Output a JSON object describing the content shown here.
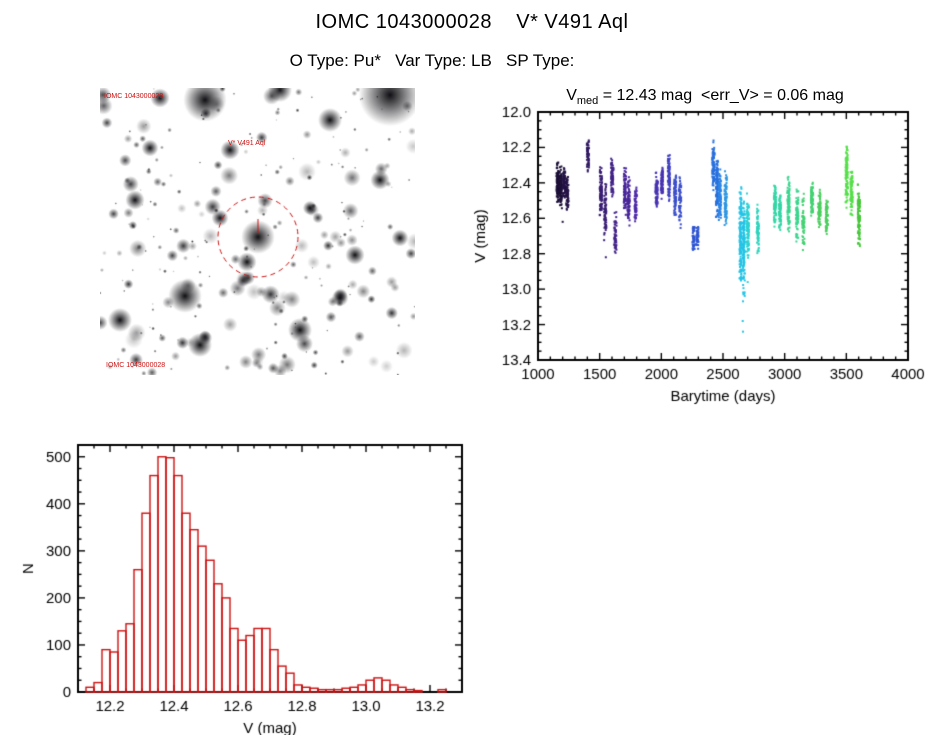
{
  "header": {
    "title": "IOMC 1043000028    V* V491 Aql",
    "subtitle": "O Type: Pu*   Var Type: LB   SP Type:"
  },
  "finding_chart": {
    "label_top_left": "IOMC 1043000028",
    "label_target": "V* V491 Aql",
    "label_bottom": "IOMC 1043000028",
    "circle_color": "#cc1111",
    "seed": 7,
    "n_stars": 270,
    "target": [
      158,
      149
    ],
    "circle_radius": 40,
    "bright_stars": [
      [
        105,
        12,
        9
      ],
      [
        290,
        7,
        13
      ],
      [
        60,
        10,
        4
      ],
      [
        130,
        62,
        4
      ],
      [
        85,
        208,
        7
      ],
      [
        100,
        257,
        5
      ],
      [
        158,
        149,
        7
      ],
      [
        147,
        174,
        4
      ],
      [
        255,
        167,
        4
      ],
      [
        200,
        242,
        5
      ],
      [
        35,
        112,
        4
      ],
      [
        280,
        92,
        4
      ],
      [
        230,
        32,
        5
      ],
      [
        20,
        232,
        5
      ],
      [
        180,
        2,
        5
      ],
      [
        300,
        150,
        3.5
      ],
      [
        50,
        60,
        3.5
      ],
      [
        240,
        210,
        3.5
      ],
      [
        120,
        130,
        3.5
      ],
      [
        210,
        120,
        3
      ]
    ]
  },
  "chart_data": [
    {
      "id": "lightcurve",
      "type": "scatter",
      "title": {
        "prefix": "V",
        "sub": "med",
        "rest": " = 12.43 mag  <err_V> = 0.06 mag"
      },
      "v_med_mag": 12.43,
      "err_v_mag": 0.06,
      "xlabel": "Barytime (days)",
      "ylabel": "V (mag)",
      "xlim": [
        1000,
        4000
      ],
      "ylim": [
        12.0,
        13.4
      ],
      "x_major": 500,
      "x_minor": 100,
      "y_major": 0.2,
      "y_minor": 0.05,
      "x_decimals": 0,
      "y_decimals": 1,
      "clusters": [
        {
          "x": 1160,
          "y1": 12.27,
          "y2": 12.52,
          "n": 110,
          "c": "#1d1038"
        },
        {
          "x": 1185,
          "y1": 12.3,
          "y2": 12.55,
          "n": 95,
          "c": "#1d1038"
        },
        {
          "x": 1212,
          "y1": 12.3,
          "y2": 12.5,
          "n": 85,
          "c": "#251347"
        },
        {
          "x": 1238,
          "y1": 12.33,
          "y2": 12.56,
          "n": 75,
          "c": "#251347"
        },
        {
          "x": 1405,
          "y1": 12.13,
          "y2": 12.35,
          "n": 55,
          "c": "#321a63"
        },
        {
          "x": 1510,
          "y1": 12.3,
          "y2": 12.62,
          "n": 85,
          "c": "#3a1e74"
        },
        {
          "x": 1545,
          "y1": 12.36,
          "y2": 12.78,
          "n": 70,
          "c": "#3a1e74"
        },
        {
          "x": 1602,
          "y1": 12.25,
          "y2": 12.48,
          "n": 85,
          "c": "#422288"
        },
        {
          "x": 1628,
          "y1": 12.55,
          "y2": 12.82,
          "n": 50,
          "c": "#422288"
        },
        {
          "x": 1705,
          "y1": 12.3,
          "y2": 12.6,
          "n": 80,
          "c": "#482699"
        },
        {
          "x": 1735,
          "y1": 12.35,
          "y2": 12.66,
          "n": 70,
          "c": "#482699"
        },
        {
          "x": 1792,
          "y1": 12.42,
          "y2": 12.62,
          "n": 60,
          "c": "#4d2aa8"
        },
        {
          "x": 1962,
          "y1": 12.32,
          "y2": 12.55,
          "n": 80,
          "c": "#4733b2"
        },
        {
          "x": 2005,
          "y1": 12.3,
          "y2": 12.5,
          "n": 70,
          "c": "#4733b2"
        },
        {
          "x": 2062,
          "y1": 12.22,
          "y2": 12.52,
          "n": 90,
          "c": "#4040c0"
        },
        {
          "x": 2112,
          "y1": 12.3,
          "y2": 12.6,
          "n": 80,
          "c": "#3b4fca"
        },
        {
          "x": 2152,
          "y1": 12.35,
          "y2": 12.68,
          "n": 60,
          "c": "#3b4fca"
        },
        {
          "x": 2262,
          "y1": 12.62,
          "y2": 12.8,
          "n": 45,
          "c": "#2f55d2"
        },
        {
          "x": 2292,
          "y1": 12.64,
          "y2": 12.78,
          "n": 40,
          "c": "#2f55d2"
        },
        {
          "x": 2422,
          "y1": 12.15,
          "y2": 12.45,
          "n": 85,
          "c": "#2970dd"
        },
        {
          "x": 2452,
          "y1": 12.25,
          "y2": 12.6,
          "n": 105,
          "c": "#2970dd"
        },
        {
          "x": 2475,
          "y1": 12.3,
          "y2": 12.62,
          "n": 95,
          "c": "#2d84e4"
        },
        {
          "x": 2522,
          "y1": 12.32,
          "y2": 12.66,
          "n": 80,
          "c": "#2d97e0"
        },
        {
          "x": 2642,
          "y1": 12.4,
          "y2": 13.05,
          "n": 140,
          "c": "#24c4e6"
        },
        {
          "x": 2668,
          "y1": 12.45,
          "y2": 13.1,
          "n": 120,
          "c": "#24c4e6"
        },
        {
          "x": 2702,
          "y1": 12.45,
          "y2": 12.86,
          "n": 90,
          "c": "#2bd2d2"
        },
        {
          "x": 2782,
          "y1": 12.5,
          "y2": 12.8,
          "n": 70,
          "c": "#2fd4bd"
        },
        {
          "x": 2922,
          "y1": 12.4,
          "y2": 12.66,
          "n": 80,
          "c": "#34d6a6"
        },
        {
          "x": 2962,
          "y1": 12.45,
          "y2": 12.7,
          "n": 70,
          "c": "#34d6a6"
        },
        {
          "x": 3032,
          "y1": 12.35,
          "y2": 12.7,
          "n": 90,
          "c": "#3bd58e"
        },
        {
          "x": 3102,
          "y1": 12.42,
          "y2": 12.75,
          "n": 70,
          "c": "#3bd58e"
        },
        {
          "x": 3152,
          "y1": 12.45,
          "y2": 12.8,
          "n": 60,
          "c": "#43d272"
        },
        {
          "x": 3222,
          "y1": 12.38,
          "y2": 12.6,
          "n": 80,
          "c": "#43d272"
        },
        {
          "x": 3282,
          "y1": 12.42,
          "y2": 12.66,
          "n": 70,
          "c": "#4bce5e"
        },
        {
          "x": 3342,
          "y1": 12.48,
          "y2": 12.72,
          "n": 60,
          "c": "#4bce5e"
        },
        {
          "x": 3502,
          "y1": 12.18,
          "y2": 12.55,
          "n": 90,
          "c": "#55df49"
        },
        {
          "x": 3542,
          "y1": 12.3,
          "y2": 12.62,
          "n": 80,
          "c": "#55df49"
        },
        {
          "x": 3602,
          "y1": 12.4,
          "y2": 12.78,
          "n": 90,
          "c": "#48c73b"
        }
      ],
      "outliers": [
        {
          "x": 1200,
          "y": 12.62,
          "c": "#1d1038"
        },
        {
          "x": 1550,
          "y": 12.82,
          "c": "#3a1e74"
        },
        {
          "x": 2660,
          "y": 13.18,
          "c": "#24c4e6"
        },
        {
          "x": 2662,
          "y": 13.24,
          "c": "#24c4e6"
        },
        {
          "x": 2700,
          "y": 12.96,
          "c": "#2bd2d2"
        }
      ]
    },
    {
      "id": "histogram",
      "type": "bar",
      "xlabel": "V (mag)",
      "ylabel": "N",
      "color": "#cc1111",
      "xlim": [
        12.1,
        13.3
      ],
      "ylim": [
        0,
        525
      ],
      "x_major": 0.2,
      "x_minor": 0.05,
      "y_major": 100,
      "y_minor": 25,
      "x_decimals": 1,
      "y_decimals": 0,
      "bin_start": 12.125,
      "bin_width": 0.025,
      "values": [
        10,
        20,
        90,
        85,
        130,
        145,
        260,
        380,
        460,
        500,
        498,
        460,
        380,
        345,
        310,
        280,
        230,
        200,
        135,
        110,
        120,
        135,
        135,
        90,
        55,
        40,
        15,
        10,
        8,
        5,
        5,
        5,
        8,
        10,
        15,
        25,
        30,
        25,
        15,
        10,
        5,
        3,
        0,
        0,
        5
      ]
    }
  ]
}
